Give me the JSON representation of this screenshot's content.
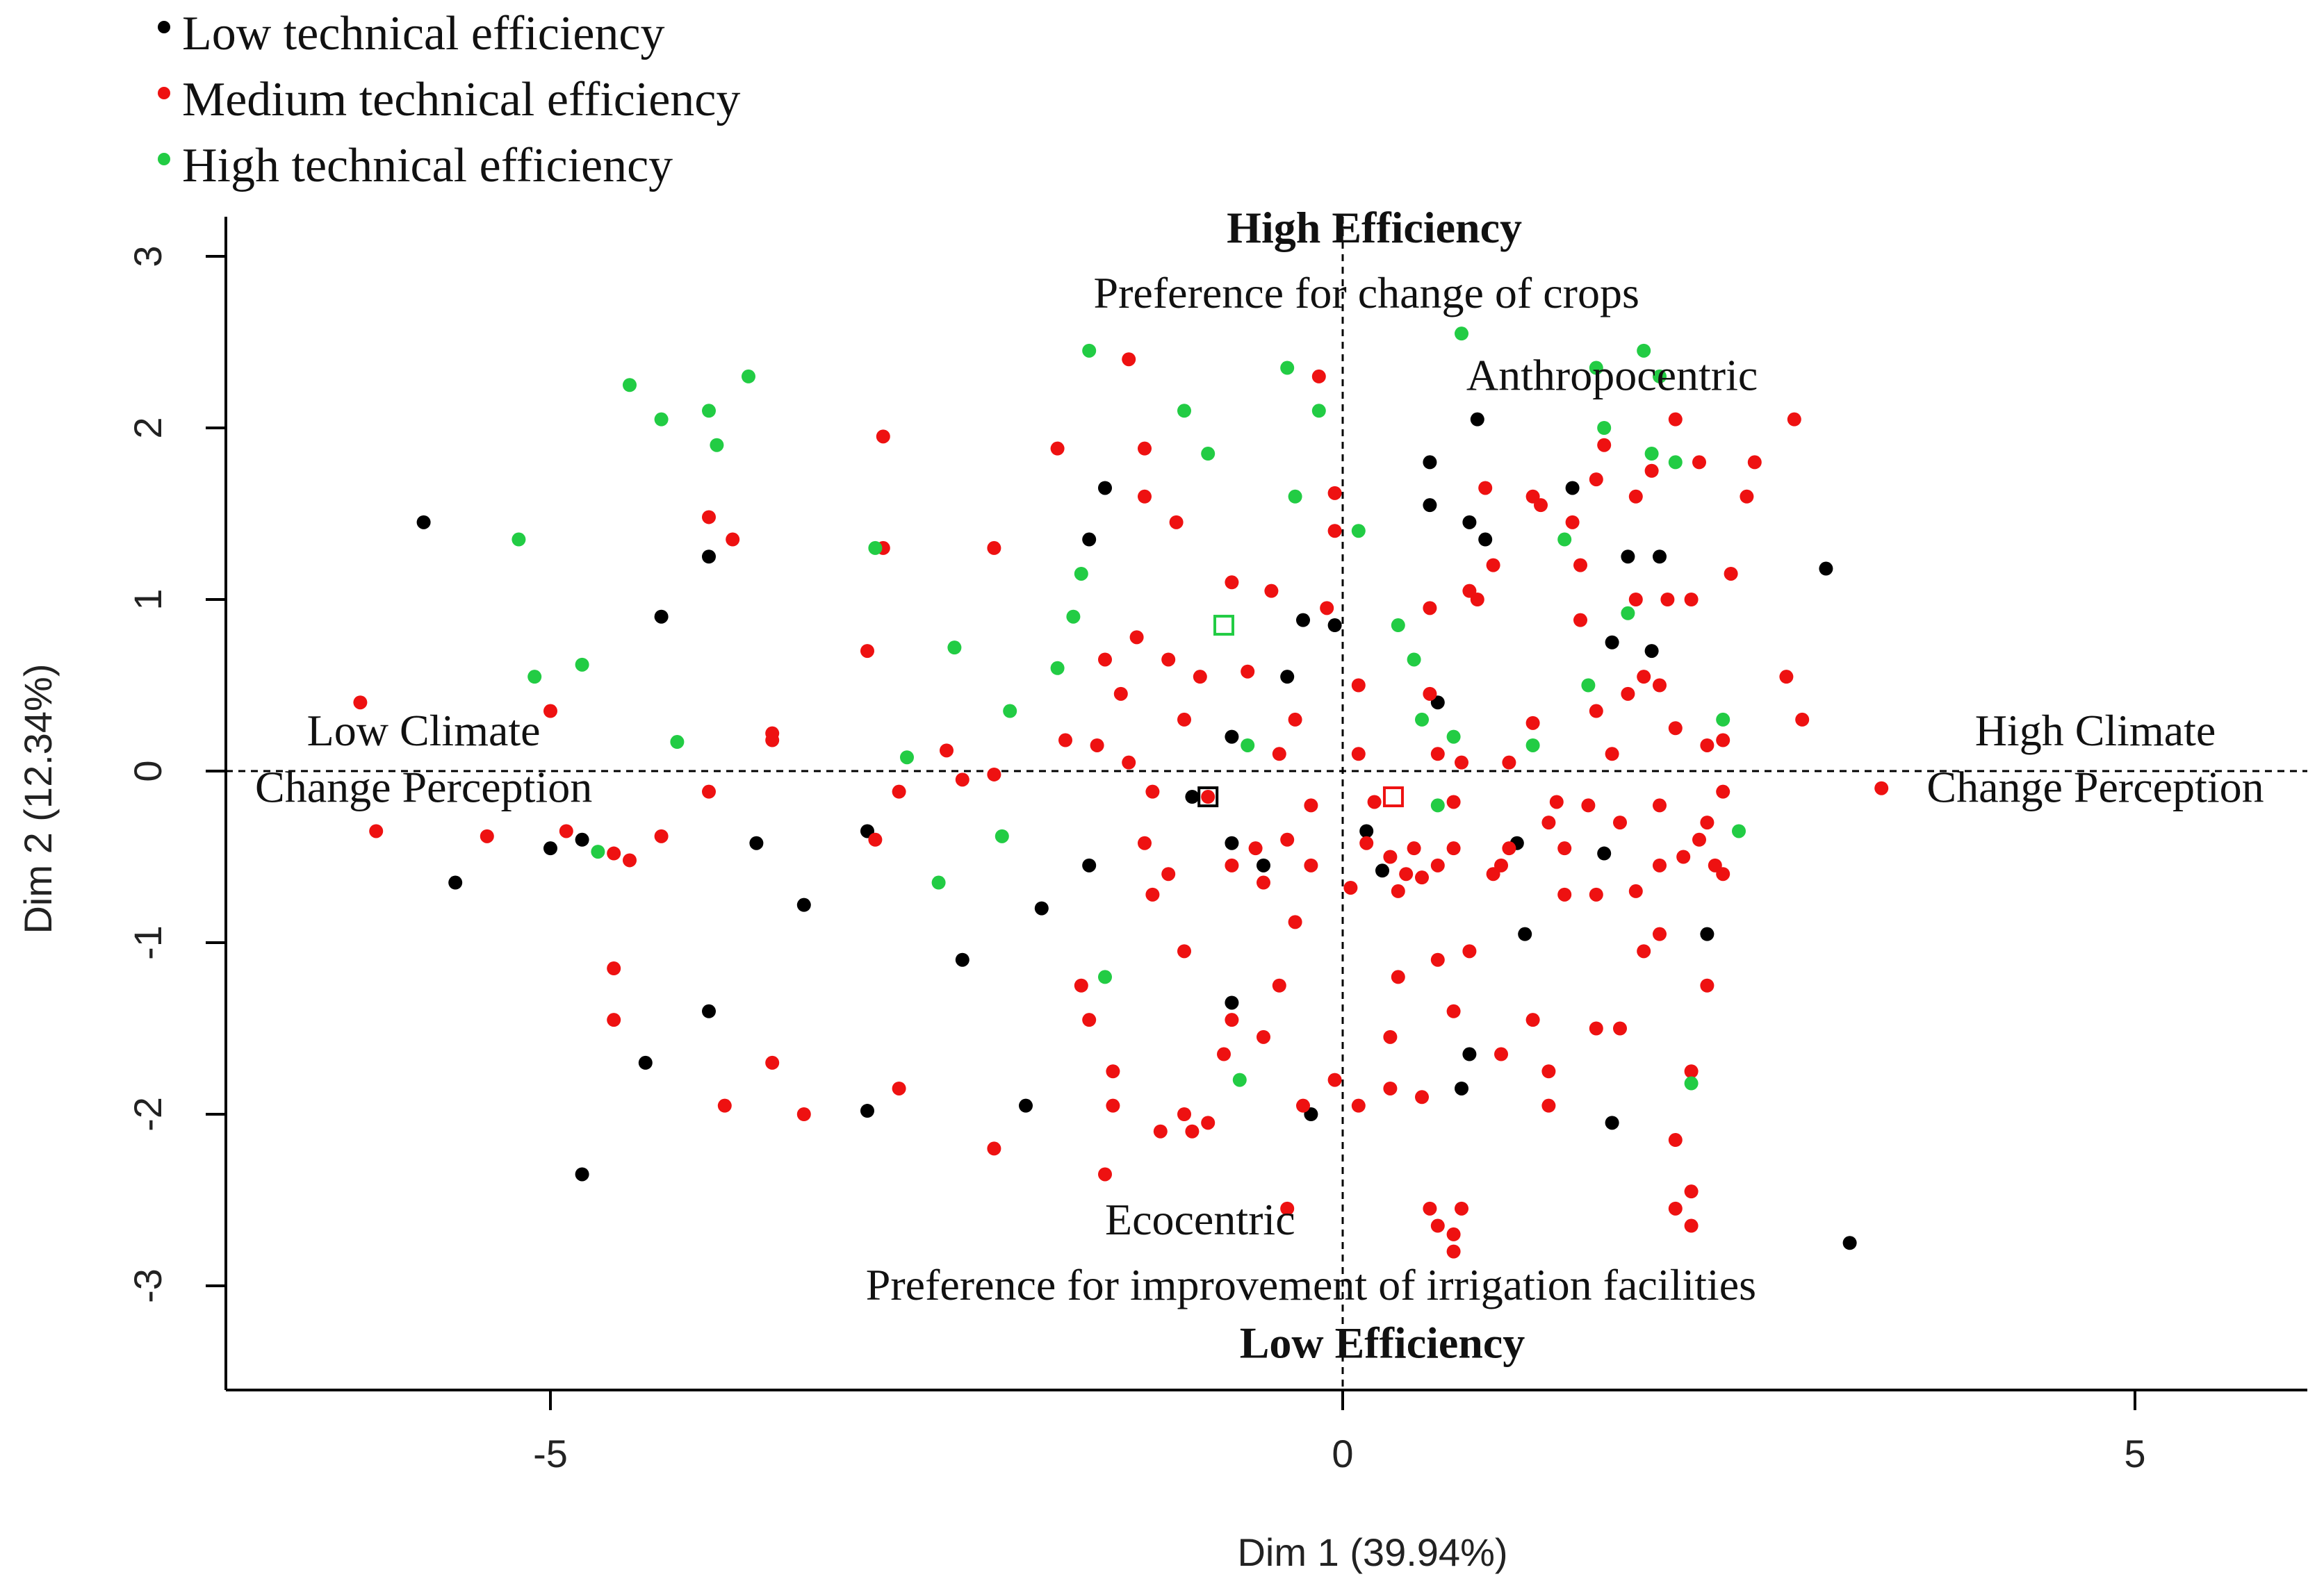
{
  "chart_data": {
    "type": "scatter",
    "title": "",
    "xlabel": "Dim 1 (39.94%)",
    "ylabel": "Dim 2 (12.34%)",
    "xlim": [
      -7,
      6
    ],
    "ylim": [
      -3.5,
      3.3
    ],
    "xticks": [
      -5,
      0,
      5
    ],
    "yticks": [
      -3,
      -2,
      -1,
      0,
      1,
      2,
      3
    ],
    "grid": false,
    "legend_position": "top-left",
    "reference_lines": {
      "x": 0,
      "y": 0,
      "style": "dashed"
    },
    "annotations": [
      {
        "text": "High Efficiency",
        "x": 0.2,
        "y": 3.08,
        "bold": true
      },
      {
        "text": "Preference for change of crops",
        "x": 0.15,
        "y": 2.7,
        "bold": false
      },
      {
        "text": "Anthropocentric",
        "x": 1.7,
        "y": 2.22,
        "bold": false
      },
      {
        "text": "Low Climate",
        "x": -5.8,
        "y": 0.15,
        "bold": false
      },
      {
        "text": "Change Perception",
        "x": -5.8,
        "y": -0.18,
        "bold": false
      },
      {
        "text": "High Climate",
        "x": 4.75,
        "y": 0.15,
        "bold": false
      },
      {
        "text": "Change Perception",
        "x": 4.75,
        "y": -0.18,
        "bold": false
      },
      {
        "text": "Ecocentric",
        "x": -0.9,
        "y": -2.7,
        "bold": false
      },
      {
        "text": "Preference for  improvement of irrigation facilities",
        "x": -0.2,
        "y": -3.08,
        "bold": false
      },
      {
        "text": "Low Efficiency",
        "x": 0.25,
        "y": -3.42,
        "bold": true
      }
    ],
    "series": [
      {
        "name": "Low technical efficiency",
        "color": "#000000",
        "points": [
          [
            -5.8,
            1.45
          ],
          [
            -4.3,
            0.9
          ],
          [
            -4.0,
            1.25
          ],
          [
            -5.0,
            -0.45
          ],
          [
            -4.8,
            -0.4
          ],
          [
            -5.6,
            -0.65
          ],
          [
            -3.7,
            -0.42
          ],
          [
            -3.4,
            -0.78
          ],
          [
            -3.0,
            -0.35
          ],
          [
            -2.4,
            -1.1
          ],
          [
            -1.9,
            -0.8
          ],
          [
            -1.6,
            -0.55
          ],
          [
            -1.6,
            1.35
          ],
          [
            -1.5,
            1.65
          ],
          [
            -4.0,
            -1.4
          ],
          [
            -4.4,
            -1.7
          ],
          [
            -4.8,
            -2.35
          ],
          [
            -3.0,
            -1.98
          ],
          [
            -2.0,
            -1.95
          ],
          [
            -0.95,
            -0.15
          ],
          [
            -0.7,
            -0.42
          ],
          [
            -0.5,
            -0.55
          ],
          [
            -0.7,
            0.2
          ],
          [
            -0.35,
            0.55
          ],
          [
            -0.25,
            0.88
          ],
          [
            -0.05,
            0.85
          ],
          [
            0.15,
            -0.35
          ],
          [
            0.25,
            -0.58
          ],
          [
            0.55,
            1.55
          ],
          [
            0.8,
            1.45
          ],
          [
            0.55,
            1.8
          ],
          [
            0.85,
            2.05
          ],
          [
            0.9,
            1.35
          ],
          [
            0.6,
            0.4
          ],
          [
            1.1,
            -0.42
          ],
          [
            0.75,
            -1.85
          ],
          [
            0.8,
            -1.65
          ],
          [
            1.15,
            -0.95
          ],
          [
            1.45,
            1.65
          ],
          [
            1.7,
            0.75
          ],
          [
            1.8,
            1.25
          ],
          [
            1.95,
            0.7
          ],
          [
            2.0,
            1.25
          ],
          [
            1.65,
            -0.48
          ],
          [
            2.3,
            -0.95
          ],
          [
            3.05,
            1.18
          ],
          [
            3.2,
            -2.75
          ],
          [
            -0.7,
            -1.35
          ],
          [
            -0.2,
            -2.0
          ],
          [
            1.7,
            -2.05
          ]
        ]
      },
      {
        "name": "Medium technical efficiency",
        "color": "#ee1111",
        "points": [
          [
            -6.2,
            0.4
          ],
          [
            -6.1,
            -0.35
          ],
          [
            -5.4,
            -0.38
          ],
          [
            -5.0,
            0.35
          ],
          [
            -4.9,
            -0.35
          ],
          [
            -4.6,
            -0.48
          ],
          [
            -4.5,
            -0.52
          ],
          [
            -4.3,
            -0.38
          ],
          [
            -4.0,
            -0.12
          ],
          [
            -4.0,
            1.48
          ],
          [
            -3.85,
            1.35
          ],
          [
            -4.6,
            -1.15
          ],
          [
            -4.6,
            -1.45
          ],
          [
            -3.6,
            0.22
          ],
          [
            -3.6,
            0.18
          ],
          [
            -3.9,
            -1.95
          ],
          [
            -3.6,
            -1.7
          ],
          [
            -3.4,
            -2.0
          ],
          [
            -2.9,
            1.3
          ],
          [
            -2.9,
            1.95
          ],
          [
            -2.95,
            -0.4
          ],
          [
            -3.0,
            0.7
          ],
          [
            -2.8,
            -0.12
          ],
          [
            -2.5,
            0.12
          ],
          [
            -2.4,
            -0.05
          ],
          [
            -2.2,
            1.3
          ],
          [
            -2.2,
            -0.02
          ],
          [
            -2.2,
            -2.2
          ],
          [
            -2.8,
            -1.85
          ],
          [
            -1.8,
            1.88
          ],
          [
            -1.75,
            0.18
          ],
          [
            -1.55,
            0.15
          ],
          [
            -1.5,
            0.65
          ],
          [
            -1.4,
            0.45
          ],
          [
            -1.3,
            0.78
          ],
          [
            -1.35,
            0.05
          ],
          [
            -1.25,
            1.6
          ],
          [
            -1.25,
            1.88
          ],
          [
            -1.35,
            2.4
          ],
          [
            -1.2,
            -0.12
          ],
          [
            -1.25,
            -0.42
          ],
          [
            -1.1,
            0.65
          ],
          [
            -1.05,
            1.45
          ],
          [
            -1.0,
            0.3
          ],
          [
            -1.2,
            -0.72
          ],
          [
            -0.9,
            0.55
          ],
          [
            -0.85,
            -0.15
          ],
          [
            -0.7,
            1.1
          ],
          [
            -0.6,
            0.58
          ],
          [
            -0.55,
            -0.45
          ],
          [
            -0.5,
            -0.65
          ],
          [
            -0.4,
            0.1
          ],
          [
            -0.35,
            -0.4
          ],
          [
            -0.3,
            0.3
          ],
          [
            -0.2,
            -0.2
          ],
          [
            -0.2,
            -0.55
          ],
          [
            -0.3,
            -0.88
          ],
          [
            -0.15,
            2.3
          ],
          [
            -0.45,
            1.05
          ],
          [
            -0.1,
            0.95
          ],
          [
            -0.05,
            1.62
          ],
          [
            -0.05,
            1.4
          ],
          [
            0.05,
            -0.68
          ],
          [
            0.1,
            0.5
          ],
          [
            0.1,
            0.1
          ],
          [
            0.15,
            -0.42
          ],
          [
            0.2,
            -0.18
          ],
          [
            0.3,
            -0.5
          ],
          [
            0.35,
            -0.7
          ],
          [
            0.4,
            -0.6
          ],
          [
            0.45,
            -0.45
          ],
          [
            0.5,
            -0.62
          ],
          [
            0.55,
            0.45
          ],
          [
            0.55,
            0.95
          ],
          [
            0.6,
            0.1
          ],
          [
            0.7,
            -0.18
          ],
          [
            0.7,
            -0.45
          ],
          [
            0.75,
            0.05
          ],
          [
            0.8,
            1.05
          ],
          [
            0.85,
            1.0
          ],
          [
            0.9,
            1.65
          ],
          [
            0.95,
            1.2
          ],
          [
            1.0,
            -0.55
          ],
          [
            1.05,
            -0.45
          ],
          [
            1.05,
            0.05
          ],
          [
            1.2,
            0.28
          ],
          [
            1.2,
            1.6
          ],
          [
            1.25,
            1.55
          ],
          [
            1.3,
            -0.3
          ],
          [
            1.35,
            -0.18
          ],
          [
            1.4,
            -0.45
          ],
          [
            1.45,
            1.45
          ],
          [
            1.5,
            1.2
          ],
          [
            1.5,
            0.88
          ],
          [
            1.55,
            -0.2
          ],
          [
            1.6,
            0.35
          ],
          [
            1.6,
            1.7
          ],
          [
            1.65,
            1.9
          ],
          [
            1.7,
            0.1
          ],
          [
            1.75,
            -0.3
          ],
          [
            1.8,
            0.45
          ],
          [
            1.85,
            1.0
          ],
          [
            1.85,
            1.6
          ],
          [
            1.9,
            0.55
          ],
          [
            1.95,
            1.75
          ],
          [
            2.0,
            0.5
          ],
          [
            2.0,
            -0.2
          ],
          [
            2.05,
            1.0
          ],
          [
            2.1,
            0.25
          ],
          [
            2.1,
            2.05
          ],
          [
            2.15,
            -0.5
          ],
          [
            2.2,
            1.0
          ],
          [
            2.25,
            1.8
          ],
          [
            2.3,
            -0.3
          ],
          [
            2.3,
            0.15
          ],
          [
            2.35,
            -0.55
          ],
          [
            2.4,
            0.18
          ],
          [
            2.4,
            -0.12
          ],
          [
            2.45,
            1.15
          ],
          [
            2.55,
            1.6
          ],
          [
            2.6,
            1.8
          ],
          [
            2.8,
            0.55
          ],
          [
            2.85,
            2.05
          ],
          [
            2.9,
            0.3
          ],
          [
            3.4,
            -0.1
          ],
          [
            2.4,
            -0.6
          ],
          [
            2.3,
            -1.25
          ],
          [
            2.2,
            -1.75
          ],
          [
            2.2,
            -2.45
          ],
          [
            2.2,
            -2.65
          ],
          [
            2.1,
            -2.55
          ],
          [
            2.1,
            -2.15
          ],
          [
            1.9,
            -1.05
          ],
          [
            2.0,
            -0.95
          ],
          [
            1.75,
            -1.5
          ],
          [
            1.6,
            -1.5
          ],
          [
            1.3,
            -1.95
          ],
          [
            1.3,
            -1.75
          ],
          [
            1.2,
            -1.45
          ],
          [
            1.0,
            -1.65
          ],
          [
            0.7,
            -1.4
          ],
          [
            0.8,
            -1.05
          ],
          [
            0.6,
            -1.1
          ],
          [
            0.55,
            -2.55
          ],
          [
            0.6,
            -2.65
          ],
          [
            0.7,
            -2.7
          ],
          [
            0.7,
            -2.8
          ],
          [
            0.75,
            -2.55
          ],
          [
            0.35,
            -1.2
          ],
          [
            0.3,
            -1.85
          ],
          [
            0.3,
            -1.55
          ],
          [
            0.5,
            -1.9
          ],
          [
            0.1,
            -1.95
          ],
          [
            -0.05,
            -1.8
          ],
          [
            -0.25,
            -1.95
          ],
          [
            -0.35,
            -2.55
          ],
          [
            -0.4,
            -1.25
          ],
          [
            -0.5,
            -1.55
          ],
          [
            -0.7,
            -1.45
          ],
          [
            -0.75,
            -1.65
          ],
          [
            -0.85,
            -2.05
          ],
          [
            -1.0,
            -1.05
          ],
          [
            -1.0,
            -2.0
          ],
          [
            -1.15,
            -2.1
          ],
          [
            -1.45,
            -1.75
          ],
          [
            -1.45,
            -1.95
          ],
          [
            -1.5,
            -2.35
          ],
          [
            -1.6,
            -1.45
          ],
          [
            -1.65,
            -1.25
          ],
          [
            -0.95,
            -2.1
          ],
          [
            -0.7,
            -0.55
          ],
          [
            -1.1,
            -0.6
          ],
          [
            0.6,
            -0.55
          ],
          [
            0.95,
            -0.6
          ],
          [
            1.4,
            -0.72
          ],
          [
            1.6,
            -0.72
          ],
          [
            2.0,
            -0.55
          ],
          [
            2.25,
            -0.4
          ],
          [
            1.85,
            -0.7
          ]
        ]
      },
      {
        "name": "High technical efficiency",
        "color": "#22cc44",
        "points": [
          [
            -5.2,
            1.35
          ],
          [
            -5.1,
            0.55
          ],
          [
            -4.8,
            0.62
          ],
          [
            -4.7,
            -0.47
          ],
          [
            -4.5,
            2.25
          ],
          [
            -4.3,
            2.05
          ],
          [
            -4.2,
            0.17
          ],
          [
            -4.0,
            2.1
          ],
          [
            -3.95,
            1.9
          ],
          [
            -3.75,
            2.3
          ],
          [
            -2.95,
            1.3
          ],
          [
            -2.75,
            0.08
          ],
          [
            -2.55,
            -0.65
          ],
          [
            -2.45,
            0.72
          ],
          [
            -2.15,
            -0.38
          ],
          [
            -2.1,
            0.35
          ],
          [
            -1.8,
            0.6
          ],
          [
            -1.65,
            1.15
          ],
          [
            -1.7,
            0.9
          ],
          [
            -1.5,
            -1.2
          ],
          [
            -1.6,
            2.45
          ],
          [
            -1.0,
            2.1
          ],
          [
            -0.85,
            1.85
          ],
          [
            -0.6,
            0.15
          ],
          [
            -0.65,
            -1.8
          ],
          [
            -0.35,
            2.35
          ],
          [
            -0.3,
            1.6
          ],
          [
            -0.15,
            2.1
          ],
          [
            0.1,
            1.4
          ],
          [
            0.35,
            0.85
          ],
          [
            0.45,
            0.65
          ],
          [
            0.5,
            0.3
          ],
          [
            0.6,
            -0.2
          ],
          [
            0.7,
            0.2
          ],
          [
            0.75,
            2.55
          ],
          [
            1.4,
            1.35
          ],
          [
            1.55,
            0.5
          ],
          [
            1.6,
            2.35
          ],
          [
            1.65,
            2.0
          ],
          [
            1.8,
            0.92
          ],
          [
            1.9,
            2.45
          ],
          [
            2.0,
            2.3
          ],
          [
            1.95,
            1.85
          ],
          [
            2.1,
            1.8
          ],
          [
            2.4,
            0.3
          ],
          [
            2.2,
            -1.82
          ],
          [
            2.5,
            -0.35
          ],
          [
            1.2,
            0.15
          ]
        ]
      }
    ],
    "centroids": [
      {
        "series": "Low technical efficiency",
        "color": "#000000",
        "x": -0.85,
        "y": -0.15
      },
      {
        "series": "Medium technical efficiency",
        "color": "#ee1111",
        "x": 0.32,
        "y": -0.15
      },
      {
        "series": "High technical efficiency",
        "color": "#22cc44",
        "x": -0.75,
        "y": 0.85
      }
    ]
  }
}
